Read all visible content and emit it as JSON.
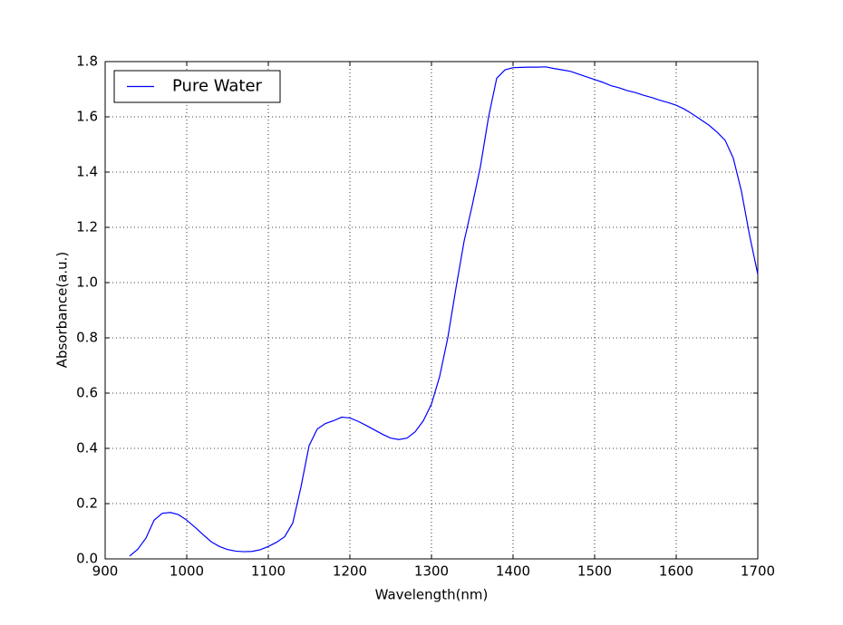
{
  "chart_data": {
    "type": "line",
    "xlabel": "Wavelength(nm)",
    "ylabel": "Absorbance(a.u.)",
    "x": [
      930,
      940,
      950,
      960,
      970,
      980,
      990,
      1000,
      1010,
      1020,
      1030,
      1040,
      1050,
      1060,
      1070,
      1080,
      1090,
      1100,
      1110,
      1120,
      1130,
      1140,
      1150,
      1160,
      1170,
      1180,
      1190,
      1200,
      1210,
      1220,
      1230,
      1240,
      1250,
      1260,
      1270,
      1280,
      1290,
      1300,
      1310,
      1320,
      1330,
      1340,
      1350,
      1360,
      1370,
      1380,
      1390,
      1400,
      1410,
      1420,
      1430,
      1440,
      1450,
      1460,
      1470,
      1480,
      1490,
      1500,
      1510,
      1520,
      1530,
      1540,
      1550,
      1560,
      1570,
      1580,
      1590,
      1600,
      1610,
      1620,
      1630,
      1640,
      1650,
      1660,
      1670,
      1680,
      1690,
      1700
    ],
    "series": [
      {
        "name": "Pure Water",
        "color": "#0000ff",
        "values": [
          0.01,
          0.035,
          0.075,
          0.14,
          0.165,
          0.168,
          0.16,
          0.14,
          0.115,
          0.088,
          0.062,
          0.045,
          0.034,
          0.028,
          0.026,
          0.027,
          0.033,
          0.045,
          0.06,
          0.08,
          0.13,
          0.26,
          0.41,
          0.47,
          0.49,
          0.5,
          0.513,
          0.51,
          0.498,
          0.483,
          0.467,
          0.451,
          0.437,
          0.432,
          0.437,
          0.46,
          0.5,
          0.56,
          0.66,
          0.8,
          0.98,
          1.15,
          1.28,
          1.42,
          1.6,
          1.74,
          1.77,
          1.778,
          1.779,
          1.78,
          1.78,
          1.781,
          1.775,
          1.77,
          1.765,
          1.755,
          1.745,
          1.735,
          1.725,
          1.713,
          1.705,
          1.695,
          1.688,
          1.678,
          1.67,
          1.66,
          1.652,
          1.642,
          1.628,
          1.61,
          1.59,
          1.57,
          1.545,
          1.515,
          1.45,
          1.33,
          1.17,
          1.03
        ]
      }
    ],
    "xlim": [
      900,
      1700
    ],
    "xticks": [
      900,
      1000,
      1100,
      1200,
      1300,
      1400,
      1500,
      1600,
      1700
    ],
    "ylim": [
      0,
      1.8
    ],
    "yticks": [
      {
        "value": 0,
        "label": "0.0"
      },
      0.2,
      0.4,
      0.6,
      0.8,
      {
        "value": 1,
        "label": "1.0"
      },
      1.2,
      1.4,
      1.6,
      1.8
    ],
    "grid": true,
    "legend": "upper left"
  }
}
